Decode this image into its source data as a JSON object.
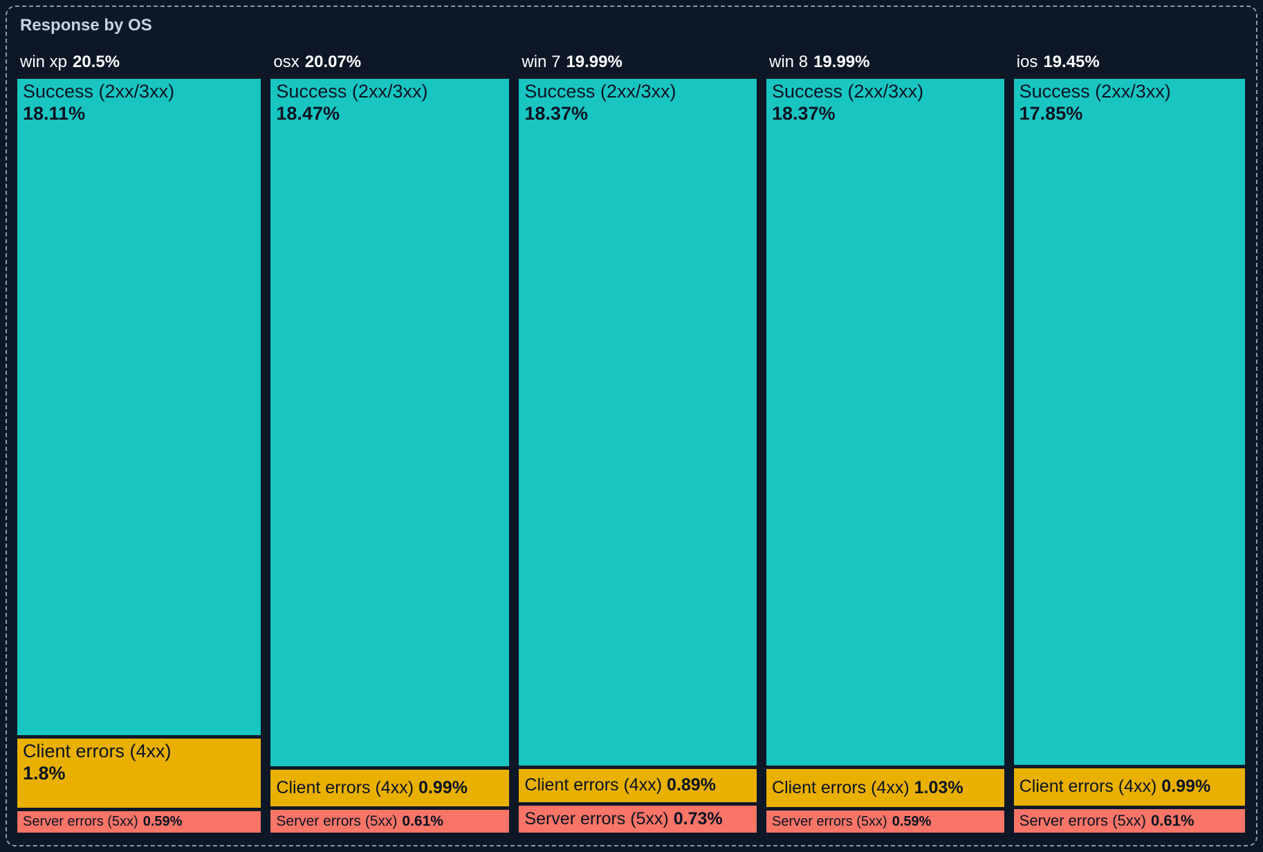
{
  "panel": {
    "title": "Response by OS"
  },
  "colors": {
    "background": "#0d1726",
    "panel_border": "#8c9cb5",
    "title_text": "#c9d3e0",
    "header_text": "#ffffff",
    "segment_text": "#0b1322",
    "success": "#18c5c1",
    "client_errors": "#e9b000",
    "server_errors": "#f87568"
  },
  "chart_data": {
    "type": "treemap",
    "title": "Response by OS",
    "unit": "%",
    "layout": "five equal-height columns, one per OS; each column stacked top-to-bottom with segments sized by value",
    "legend": [
      "Success (2xx/3xx)",
      "Client errors (4xx)",
      "Server errors (5xx)"
    ],
    "columns": [
      {
        "os": "win xp",
        "total": 20.5,
        "total_label": "20.5%",
        "segments": [
          {
            "label": "Success (2xx/3xx)",
            "value": 18.11,
            "display": "18.11%",
            "color_key": "success"
          },
          {
            "label": "Client errors (4xx)",
            "value": 1.8,
            "display": "1.8%",
            "color_key": "client_errors"
          },
          {
            "label": "Server errors (5xx)",
            "value": 0.59,
            "display": "0.59%",
            "color_key": "server_errors"
          }
        ]
      },
      {
        "os": "osx",
        "total": 20.07,
        "total_label": "20.07%",
        "segments": [
          {
            "label": "Success (2xx/3xx)",
            "value": 18.47,
            "display": "18.47%",
            "color_key": "success"
          },
          {
            "label": "Client errors (4xx)",
            "value": 0.99,
            "display": "0.99%",
            "color_key": "client_errors"
          },
          {
            "label": "Server errors (5xx)",
            "value": 0.61,
            "display": "0.61%",
            "color_key": "server_errors"
          }
        ]
      },
      {
        "os": "win 7",
        "total": 19.99,
        "total_label": "19.99%",
        "segments": [
          {
            "label": "Success (2xx/3xx)",
            "value": 18.37,
            "display": "18.37%",
            "color_key": "success"
          },
          {
            "label": "Client errors (4xx)",
            "value": 0.89,
            "display": "0.89%",
            "color_key": "client_errors"
          },
          {
            "label": "Server errors (5xx)",
            "value": 0.73,
            "display": "0.73%",
            "color_key": "server_errors"
          }
        ]
      },
      {
        "os": "win 8",
        "total": 19.99,
        "total_label": "19.99%",
        "segments": [
          {
            "label": "Success (2xx/3xx)",
            "value": 18.37,
            "display": "18.37%",
            "color_key": "success"
          },
          {
            "label": "Client errors (4xx)",
            "value": 1.03,
            "display": "1.03%",
            "color_key": "client_errors"
          },
          {
            "label": "Server errors (5xx)",
            "value": 0.59,
            "display": "0.59%",
            "color_key": "server_errors"
          }
        ]
      },
      {
        "os": "ios",
        "total": 19.45,
        "total_label": "19.45%",
        "segments": [
          {
            "label": "Success (2xx/3xx)",
            "value": 17.85,
            "display": "17.85%",
            "color_key": "success"
          },
          {
            "label": "Client errors (4xx)",
            "value": 0.99,
            "display": "0.99%",
            "color_key": "client_errors"
          },
          {
            "label": "Server errors (5xx)",
            "value": 0.61,
            "display": "0.61%",
            "color_key": "server_errors"
          }
        ]
      }
    ]
  }
}
